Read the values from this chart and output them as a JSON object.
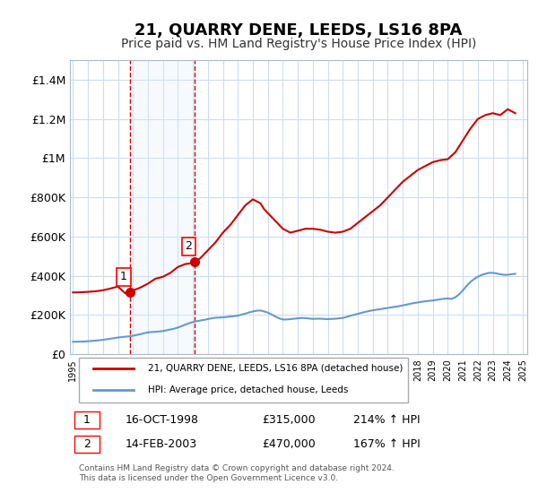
{
  "title": "21, QUARRY DENE, LEEDS, LS16 8PA",
  "subtitle": "Price paid vs. HM Land Registry's House Price Index (HPI)",
  "ylabel": "",
  "xlabel": "",
  "ylim": [
    0,
    1500000
  ],
  "yticks": [
    0,
    200000,
    400000,
    600000,
    800000,
    1000000,
    1200000,
    1400000
  ],
  "ytick_labels": [
    "£0",
    "£200K",
    "£400K",
    "£600K",
    "£800K",
    "£1M",
    "£1.2M",
    "£1.4M"
  ],
  "title_fontsize": 13,
  "subtitle_fontsize": 10,
  "background_color": "#ffffff",
  "grid_color": "#ccddee",
  "transaction1": {
    "date_num": 1998.79,
    "price": 315000,
    "label": "1"
  },
  "transaction2": {
    "date_num": 2003.12,
    "price": 470000,
    "label": "2"
  },
  "legend_line1": "21, QUARRY DENE, LEEDS, LS16 8PA (detached house)",
  "legend_line2": "HPI: Average price, detached house, Leeds",
  "footnote": "Contains HM Land Registry data © Crown copyright and database right 2024.\nThis data is licensed under the Open Government Licence v3.0.",
  "table_rows": [
    {
      "num": "1",
      "date": "16-OCT-1998",
      "price": "£315,000",
      "hpi": "214% ↑ HPI"
    },
    {
      "num": "2",
      "date": "14-FEB-2003",
      "price": "£470,000",
      "hpi": "167% ↑ HPI"
    }
  ],
  "red_line_color": "#cc0000",
  "blue_line_color": "#6699cc",
  "marker_fill": "#cc0000",
  "shade_color": "#ddeeff",
  "vline_color": "#cc0000",
  "hpi_data_x": [
    1995.0,
    1995.25,
    1995.5,
    1995.75,
    1996.0,
    1996.25,
    1996.5,
    1996.75,
    1997.0,
    1997.25,
    1997.5,
    1997.75,
    1998.0,
    1998.25,
    1998.5,
    1998.75,
    1999.0,
    1999.25,
    1999.5,
    1999.75,
    2000.0,
    2000.25,
    2000.5,
    2000.75,
    2001.0,
    2001.25,
    2001.5,
    2001.75,
    2002.0,
    2002.25,
    2002.5,
    2002.75,
    2003.0,
    2003.25,
    2003.5,
    2003.75,
    2004.0,
    2004.25,
    2004.5,
    2004.75,
    2005.0,
    2005.25,
    2005.5,
    2005.75,
    2006.0,
    2006.25,
    2006.5,
    2006.75,
    2007.0,
    2007.25,
    2007.5,
    2007.75,
    2008.0,
    2008.25,
    2008.5,
    2008.75,
    2009.0,
    2009.25,
    2009.5,
    2009.75,
    2010.0,
    2010.25,
    2010.5,
    2010.75,
    2011.0,
    2011.25,
    2011.5,
    2011.75,
    2012.0,
    2012.25,
    2012.5,
    2012.75,
    2013.0,
    2013.25,
    2013.5,
    2013.75,
    2014.0,
    2014.25,
    2014.5,
    2014.75,
    2015.0,
    2015.25,
    2015.5,
    2015.75,
    2016.0,
    2016.25,
    2016.5,
    2016.75,
    2017.0,
    2017.25,
    2017.5,
    2017.75,
    2018.0,
    2018.25,
    2018.5,
    2018.75,
    2019.0,
    2019.25,
    2019.5,
    2019.75,
    2020.0,
    2020.25,
    2020.5,
    2020.75,
    2021.0,
    2021.25,
    2021.5,
    2021.75,
    2022.0,
    2022.25,
    2022.5,
    2022.75,
    2023.0,
    2023.25,
    2023.5,
    2023.75,
    2024.0,
    2024.25,
    2024.5
  ],
  "hpi_data_y": [
    63000,
    63500,
    64000,
    64500,
    66000,
    67500,
    69000,
    71000,
    73000,
    76000,
    79000,
    82000,
    85000,
    87000,
    89000,
    91000,
    94000,
    98000,
    102000,
    107000,
    111000,
    113000,
    114000,
    116000,
    118000,
    122000,
    126000,
    130000,
    136000,
    143000,
    151000,
    158000,
    164000,
    168000,
    172000,
    175000,
    179000,
    183000,
    186000,
    187000,
    188000,
    190000,
    192000,
    194000,
    197000,
    202000,
    207000,
    213000,
    218000,
    222000,
    223000,
    218000,
    212000,
    203000,
    192000,
    183000,
    177000,
    177000,
    179000,
    181000,
    183000,
    185000,
    184000,
    182000,
    180000,
    181000,
    181000,
    180000,
    179000,
    180000,
    181000,
    183000,
    185000,
    190000,
    196000,
    201000,
    206000,
    211000,
    216000,
    220000,
    224000,
    227000,
    230000,
    233000,
    236000,
    239000,
    242000,
    245000,
    249000,
    253000,
    257000,
    261000,
    264000,
    267000,
    270000,
    272000,
    274000,
    277000,
    280000,
    283000,
    284000,
    282000,
    290000,
    305000,
    325000,
    348000,
    368000,
    383000,
    395000,
    404000,
    410000,
    415000,
    415000,
    412000,
    408000,
    405000,
    405000,
    408000,
    410000
  ],
  "red_data_x": [
    1995.0,
    1995.5,
    1996.0,
    1996.5,
    1997.0,
    1997.5,
    1998.0,
    1998.5,
    1998.79,
    1999.0,
    1999.5,
    2000.0,
    2000.5,
    2001.0,
    2001.5,
    2002.0,
    2002.5,
    2003.0,
    2003.12,
    2003.5,
    2004.0,
    2004.5,
    2005.0,
    2005.5,
    2006.0,
    2006.5,
    2007.0,
    2007.5,
    2007.75,
    2008.0,
    2008.5,
    2009.0,
    2009.5,
    2010.0,
    2010.5,
    2011.0,
    2011.5,
    2012.0,
    2012.5,
    2013.0,
    2013.5,
    2014.0,
    2014.5,
    2015.0,
    2015.5,
    2016.0,
    2016.5,
    2017.0,
    2017.5,
    2018.0,
    2018.5,
    2019.0,
    2019.5,
    2020.0,
    2020.5,
    2021.0,
    2021.5,
    2022.0,
    2022.5,
    2023.0,
    2023.5,
    2024.0,
    2024.5
  ],
  "red_data_y": [
    315000,
    316000,
    318000,
    321000,
    326000,
    335000,
    345000,
    310000,
    315000,
    325000,
    340000,
    360000,
    385000,
    395000,
    415000,
    445000,
    460000,
    465000,
    470000,
    490000,
    530000,
    570000,
    620000,
    660000,
    710000,
    760000,
    790000,
    770000,
    740000,
    720000,
    680000,
    640000,
    620000,
    630000,
    640000,
    640000,
    635000,
    625000,
    620000,
    625000,
    640000,
    670000,
    700000,
    730000,
    760000,
    800000,
    840000,
    880000,
    910000,
    940000,
    960000,
    980000,
    990000,
    995000,
    1030000,
    1090000,
    1150000,
    1200000,
    1220000,
    1230000,
    1220000,
    1250000,
    1230000
  ]
}
